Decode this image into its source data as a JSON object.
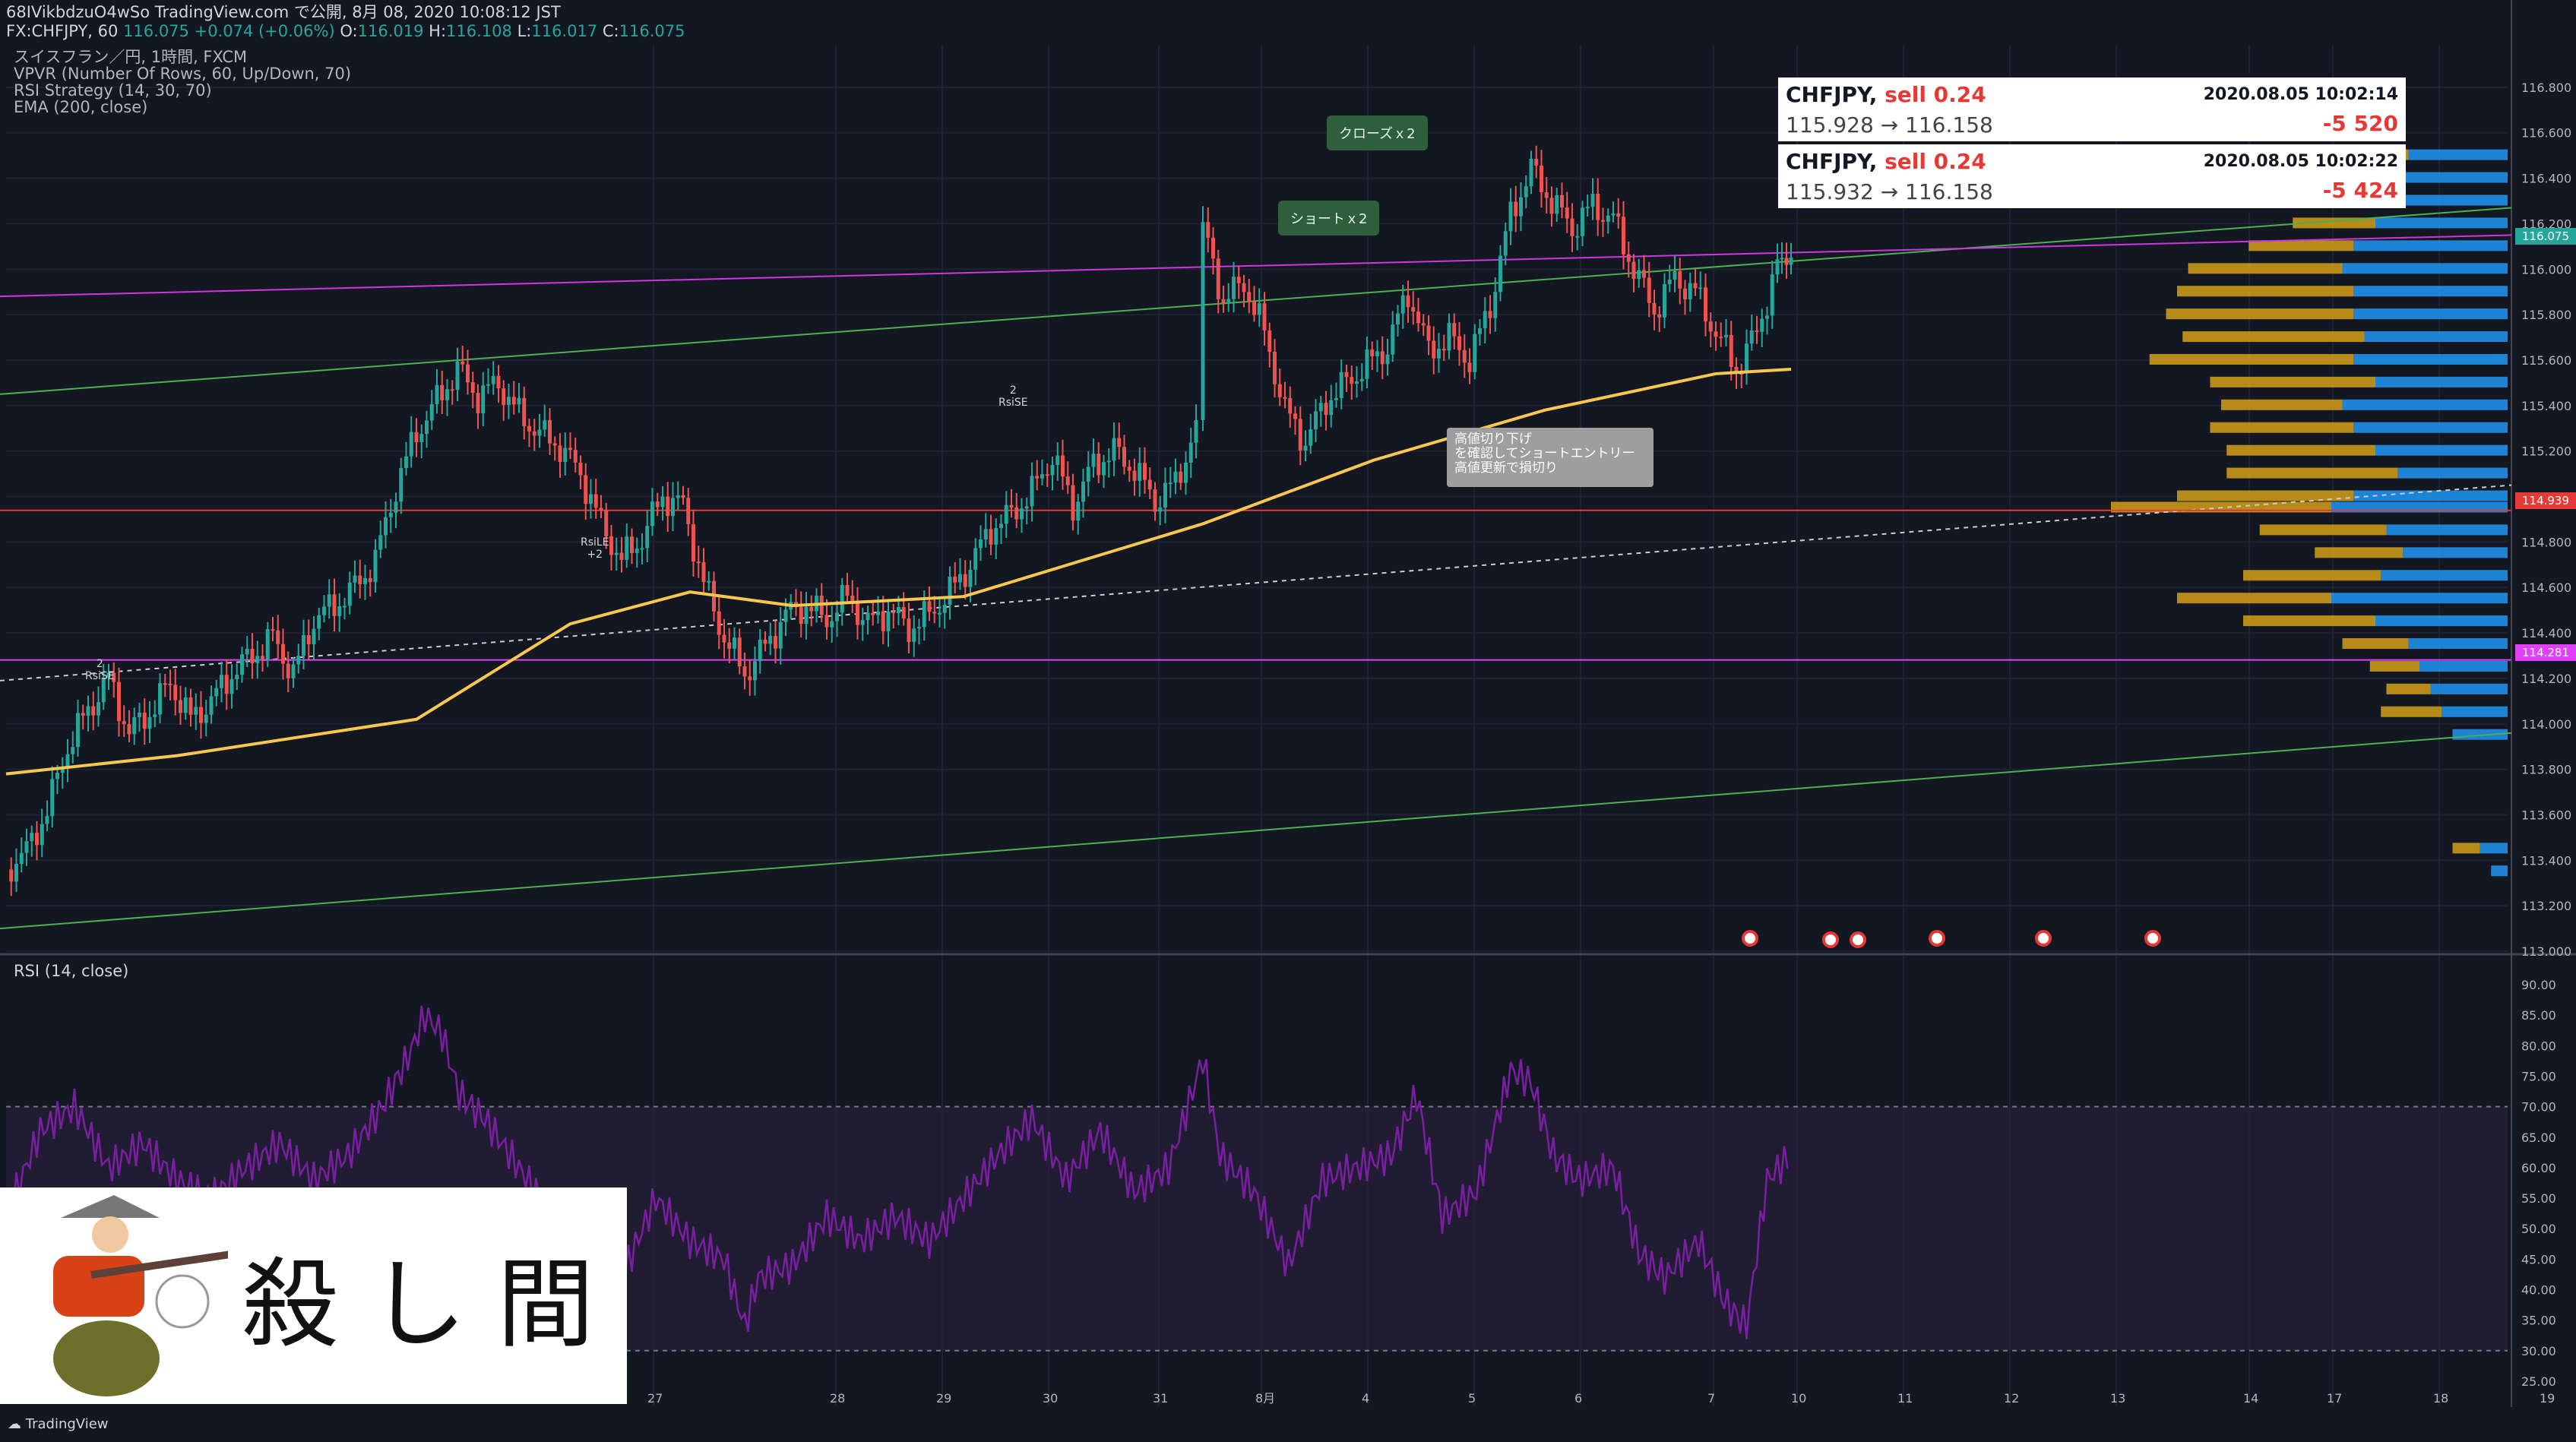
{
  "header": {
    "line1": "68IVikbdzuO4wSo TradingView.com で公開, 8月 08, 2020 10:08:12 JST",
    "symbol": "FX:CHFJPY, 60",
    "last": "116.075",
    "change": "+0.074 (+0.06%)",
    "o_label": "O:",
    "o_val": "116.019",
    "h_label": "H:",
    "h_val": "116.108",
    "l_label": "L:",
    "l_val": "116.017",
    "c_label": "C:",
    "c_val": "116.075"
  },
  "legend": {
    "line1": "スイスフラン／円, 1時間, FXCM",
    "line2": "VPVR (Number Of Rows, 60, Up/Down, 70)",
    "line3": "RSI Strategy (14, 30, 70)",
    "line4": "EMA (200, close)"
  },
  "trades": [
    {
      "symbol": "CHFJPY,",
      "side": "sell 0.24",
      "time": "2020.08.05 10:02:14",
      "prices": "115.928 → 116.158",
      "pnl": "-5 520"
    },
    {
      "symbol": "CHFJPY,",
      "side": "sell 0.24",
      "time": "2020.08.05 10:02:22",
      "prices": "115.932 → 116.158",
      "pnl": "-5 424"
    }
  ],
  "callouts": {
    "close": "クローズｘ2",
    "short": "ショートｘ2",
    "note_line1": "高値切り下げ",
    "note_line2": "を確認してショートエントリー",
    "note_line3": "高値更新で損切り"
  },
  "strategy_labels": {
    "rsise1_num": "2",
    "rsise1": "RsiSE",
    "rsile": "RsiLE",
    "rsile_num": "+2",
    "rsise2_num": "2",
    "rsise2": "RsiSE"
  },
  "price_tags": {
    "last": "116.075",
    "red": "114.939",
    "magenta": "114.281"
  },
  "rsi_title": "RSI (14, close)",
  "logo_text": "殺し間",
  "footer": "TradingView",
  "colors": {
    "bg": "#131722",
    "up": "#26a69a",
    "down": "#ef5350",
    "ema": "#f9c74f",
    "vp_up": "#2196f3",
    "vp_down": "#d4a017",
    "rsi": "#7b1fa2"
  },
  "chart_data": {
    "type": "candlestick",
    "symbol": "CHFJPY",
    "timeframe": "1H",
    "price_axis": {
      "ticks": [
        116.8,
        116.6,
        116.4,
        116.2,
        116.0,
        115.8,
        115.6,
        115.4,
        115.2,
        115.0,
        114.8,
        114.6,
        114.4,
        114.2,
        114.0,
        113.8,
        113.6,
        113.4,
        113.2,
        113.0
      ],
      "labels": [
        "116.800",
        "116.600",
        "116.400",
        "116.200",
        "116.000",
        "115.800",
        "115.600",
        "115.400",
        "115.200",
        "115.000",
        "114.800",
        "114.600",
        "114.400",
        "114.200",
        "114.000",
        "113.800",
        "113.600",
        "113.400",
        "113.200",
        "113.000"
      ],
      "range": [
        113.0,
        116.95
      ]
    },
    "time_axis": {
      "labels": [
        "27",
        "28",
        "29",
        "30",
        "31",
        "8月",
        "4",
        "5",
        "6",
        "7",
        "10",
        "11",
        "12",
        "13",
        "14",
        "17",
        "18",
        "19"
      ]
    },
    "close_path": [
      [
        0,
        113.36
      ],
      [
        12,
        113.44
      ],
      [
        24,
        113.62
      ],
      [
        36,
        113.9
      ],
      [
        48,
        114.06
      ],
      [
        60,
        114.2
      ],
      [
        72,
        113.96
      ],
      [
        84,
        114.05
      ],
      [
        96,
        114.18
      ],
      [
        108,
        114.02
      ],
      [
        120,
        114.1
      ],
      [
        132,
        114.22
      ],
      [
        144,
        114.3
      ],
      [
        156,
        114.38
      ],
      [
        168,
        114.22
      ],
      [
        180,
        114.46
      ],
      [
        192,
        114.52
      ],
      [
        204,
        114.6
      ],
      [
        216,
        114.72
      ],
      [
        228,
        115.04
      ],
      [
        240,
        115.28
      ],
      [
        252,
        115.42
      ],
      [
        264,
        115.56
      ],
      [
        276,
        115.44
      ],
      [
        288,
        115.5
      ],
      [
        300,
        115.36
      ],
      [
        312,
        115.28
      ],
      [
        324,
        115.22
      ],
      [
        336,
        115.1
      ],
      [
        348,
        114.88
      ],
      [
        360,
        114.72
      ],
      [
        372,
        114.82
      ],
      [
        384,
        115.0
      ],
      [
        396,
        114.96
      ],
      [
        408,
        114.62
      ],
      [
        420,
        114.38
      ],
      [
        432,
        114.22
      ],
      [
        444,
        114.34
      ],
      [
        456,
        114.48
      ],
      [
        468,
        114.52
      ],
      [
        480,
        114.46
      ],
      [
        492,
        114.56
      ],
      [
        504,
        114.44
      ],
      [
        516,
        114.5
      ],
      [
        528,
        114.42
      ],
      [
        540,
        114.48
      ],
      [
        552,
        114.58
      ],
      [
        564,
        114.7
      ],
      [
        576,
        114.86
      ],
      [
        588,
        114.92
      ],
      [
        600,
        115.02
      ],
      [
        612,
        115.18
      ],
      [
        624,
        114.96
      ],
      [
        636,
        115.14
      ],
      [
        648,
        115.2
      ],
      [
        660,
        115.12
      ],
      [
        672,
        114.98
      ],
      [
        684,
        115.06
      ],
      [
        696,
        115.3
      ],
      [
        700,
        116.18
      ],
      [
        712,
        115.86
      ],
      [
        724,
        115.94
      ],
      [
        736,
        115.72
      ],
      [
        748,
        115.38
      ],
      [
        760,
        115.24
      ],
      [
        772,
        115.42
      ],
      [
        784,
        115.5
      ],
      [
        796,
        115.58
      ],
      [
        808,
        115.66
      ],
      [
        820,
        115.9
      ],
      [
        832,
        115.64
      ],
      [
        844,
        115.7
      ],
      [
        856,
        115.6
      ],
      [
        868,
        115.84
      ],
      [
        880,
        116.24
      ],
      [
        892,
        116.44
      ],
      [
        904,
        116.3
      ],
      [
        916,
        116.18
      ],
      [
        928,
        116.28
      ],
      [
        940,
        116.22
      ],
      [
        952,
        116.0
      ],
      [
        964,
        115.82
      ],
      [
        976,
        115.96
      ],
      [
        988,
        115.9
      ],
      [
        1000,
        115.72
      ],
      [
        1012,
        115.56
      ],
      [
        1024,
        115.72
      ],
      [
        1036,
        116.02
      ],
      [
        1044,
        116.07
      ]
    ],
    "ema200": [
      [
        0,
        113.78
      ],
      [
        100,
        113.86
      ],
      [
        240,
        114.02
      ],
      [
        330,
        114.44
      ],
      [
        400,
        114.58
      ],
      [
        460,
        114.52
      ],
      [
        560,
        114.56
      ],
      [
        700,
        114.88
      ],
      [
        800,
        115.16
      ],
      [
        900,
        115.38
      ],
      [
        1000,
        115.54
      ],
      [
        1044,
        115.56
      ]
    ],
    "levels": [
      {
        "value": 114.939,
        "color": "red"
      },
      {
        "value": 114.281,
        "color": "magenta"
      }
    ],
    "volume_profile": [
      {
        "price": 116.5,
        "up": 90,
        "down": 35
      },
      {
        "price": 116.4,
        "up": 95,
        "down": 48
      },
      {
        "price": 116.3,
        "up": 110,
        "down": 60
      },
      {
        "price": 116.2,
        "up": 120,
        "down": 75
      },
      {
        "price": 116.1,
        "up": 140,
        "down": 95
      },
      {
        "price": 116.0,
        "up": 150,
        "down": 140
      },
      {
        "price": 115.9,
        "up": 140,
        "down": 160
      },
      {
        "price": 115.8,
        "up": 140,
        "down": 170
      },
      {
        "price": 115.7,
        "up": 130,
        "down": 165
      },
      {
        "price": 115.6,
        "up": 140,
        "down": 185
      },
      {
        "price": 115.5,
        "up": 120,
        "down": 150
      },
      {
        "price": 115.4,
        "up": 150,
        "down": 110
      },
      {
        "price": 115.3,
        "up": 140,
        "down": 130
      },
      {
        "price": 115.2,
        "up": 120,
        "down": 135
      },
      {
        "price": 115.1,
        "up": 100,
        "down": 155
      },
      {
        "price": 115.0,
        "up": 140,
        "down": 160
      },
      {
        "price": 114.95,
        "up": 160,
        "down": 200
      },
      {
        "price": 114.85,
        "up": 110,
        "down": 115
      },
      {
        "price": 114.75,
        "up": 95,
        "down": 80
      },
      {
        "price": 114.65,
        "up": 115,
        "down": 125
      },
      {
        "price": 114.55,
        "up": 160,
        "down": 140
      },
      {
        "price": 114.45,
        "up": 120,
        "down": 120
      },
      {
        "price": 114.35,
        "up": 90,
        "down": 60
      },
      {
        "price": 114.25,
        "up": 80,
        "down": 45
      },
      {
        "price": 114.15,
        "up": 70,
        "down": 40
      },
      {
        "price": 114.05,
        "up": 60,
        "down": 55
      },
      {
        "price": 113.95,
        "up": 50,
        "down": 0
      },
      {
        "price": 113.45,
        "up": 25,
        "down": 25
      },
      {
        "price": 113.35,
        "up": 15,
        "down": 0
      }
    ],
    "rsi": {
      "axis": [
        90.0,
        85.0,
        80.0,
        75.0,
        70.0,
        65.0,
        60.0,
        55.0,
        50.0,
        45.0,
        40.0,
        35.0,
        30.0,
        25.0
      ],
      "axis_labels": [
        "90.00",
        "85.00",
        "80.00",
        "75.00",
        "70.00",
        "65.00",
        "60.00",
        "55.00",
        "50.00",
        "45.00",
        "40.00",
        "35.00",
        "30.00",
        "25.00"
      ],
      "bands": [
        70,
        30
      ],
      "values": [
        [
          0,
          52
        ],
        [
          20,
          66
        ],
        [
          40,
          70
        ],
        [
          60,
          60
        ],
        [
          80,
          64
        ],
        [
          100,
          58
        ],
        [
          120,
          55
        ],
        [
          140,
          60
        ],
        [
          160,
          64
        ],
        [
          180,
          58
        ],
        [
          200,
          62
        ],
        [
          220,
          70
        ],
        [
          235,
          78
        ],
        [
          245,
          85
        ],
        [
          255,
          82
        ],
        [
          265,
          72
        ],
        [
          280,
          68
        ],
        [
          300,
          60
        ],
        [
          320,
          52
        ],
        [
          340,
          48
        ],
        [
          360,
          42
        ],
        [
          380,
          55
        ],
        [
          400,
          48
        ],
        [
          420,
          45
        ],
        [
          432,
          34
        ],
        [
          440,
          42
        ],
        [
          460,
          44
        ],
        [
          480,
          52
        ],
        [
          500,
          48
        ],
        [
          520,
          52
        ],
        [
          540,
          48
        ],
        [
          560,
          55
        ],
        [
          580,
          62
        ],
        [
          600,
          68
        ],
        [
          620,
          58
        ],
        [
          640,
          66
        ],
        [
          660,
          56
        ],
        [
          680,
          60
        ],
        [
          700,
          78
        ],
        [
          710,
          62
        ],
        [
          730,
          56
        ],
        [
          750,
          44
        ],
        [
          770,
          58
        ],
        [
          790,
          60
        ],
        [
          810,
          62
        ],
        [
          825,
          72
        ],
        [
          840,
          52
        ],
        [
          860,
          56
        ],
        [
          880,
          76
        ],
        [
          892,
          74
        ],
        [
          905,
          62
        ],
        [
          920,
          58
        ],
        [
          940,
          60
        ],
        [
          955,
          46
        ],
        [
          970,
          42
        ],
        [
          990,
          48
        ],
        [
          1005,
          38
        ],
        [
          1018,
          34
        ],
        [
          1030,
          58
        ],
        [
          1044,
          62
        ]
      ]
    }
  }
}
